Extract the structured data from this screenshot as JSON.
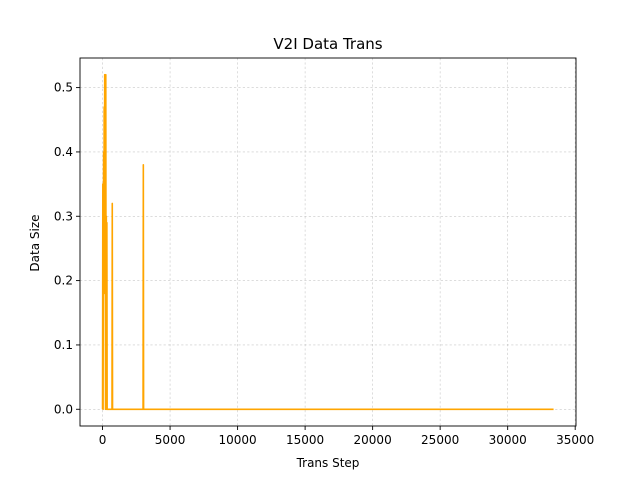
{
  "chart_data": {
    "type": "line",
    "title": "V2I Data Trans",
    "xlabel": "Trans Step",
    "ylabel": "Data Size",
    "xlim": [
      -1670,
      35060
    ],
    "ylim": [
      -0.026,
      0.546
    ],
    "xticks": [
      0,
      5000,
      10000,
      15000,
      20000,
      25000,
      30000,
      35000
    ],
    "xtick_labels": [
      "0",
      "5000",
      "10000",
      "15000",
      "20000",
      "25000",
      "30000",
      "35000"
    ],
    "yticks": [
      0.0,
      0.1,
      0.2,
      0.3,
      0.4,
      0.5
    ],
    "ytick_labels": [
      "0.0",
      "0.1",
      "0.2",
      "0.3",
      "0.4",
      "0.5"
    ],
    "grid": true,
    "series": [
      {
        "color": "#ffa500",
        "x": [
          0,
          20,
          40,
          60,
          80,
          100,
          120,
          140,
          160,
          180,
          200,
          220,
          240,
          260,
          280,
          300,
          320,
          340,
          360,
          380,
          400,
          700,
          720,
          740,
          760,
          3000,
          3020,
          3040,
          3060,
          33400
        ],
        "y": [
          0,
          0.35,
          0,
          0.26,
          0.4,
          0.18,
          0.47,
          0.3,
          0.52,
          0.22,
          0.36,
          0,
          0.52,
          0.1,
          0.3,
          0,
          0.29,
          0,
          0,
          0,
          0,
          0,
          0.32,
          0,
          0,
          0,
          0.38,
          0,
          0,
          0
        ]
      }
    ]
  }
}
